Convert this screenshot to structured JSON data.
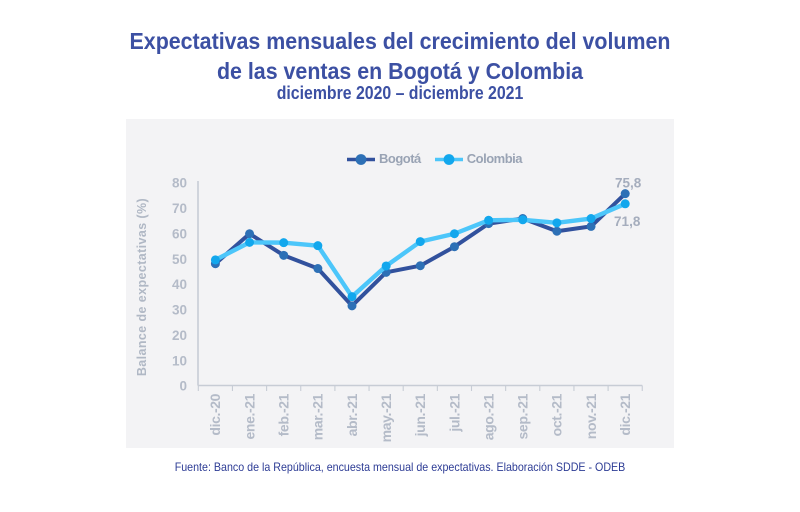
{
  "header": {
    "title_line1": "Expectativas mensuales del crecimiento del volumen",
    "title_line2": "de las ventas en Bogotá y Colombia",
    "subtitle": "diciembre 2020 – diciembre 2021"
  },
  "footer": {
    "source": "Fuente: Banco de la República, encuesta mensual de expectativas. Elaboración SDDE - ODEB"
  },
  "chart_data": {
    "type": "line",
    "title": "Expectativas mensuales del crecimiento del volumen de las ventas en Bogotá y Colombia",
    "subtitle": "diciembre 2020 – diciembre 2021",
    "categories": [
      "dic.-20",
      "ene.-21",
      "feb.-21",
      "mar.-21",
      "abr.-21",
      "may.-21",
      "jun.-21",
      "jul.-21",
      "ago.-21",
      "sep.-21",
      "oct.-21",
      "nov.-21",
      "dic.-21"
    ],
    "xlabel": "",
    "ylabel": "Balance de expectativas (%)",
    "ylim": [
      0,
      80
    ],
    "ytick_step": 10,
    "grid": false,
    "legend_position": "top",
    "series": [
      {
        "name": "Bogotá",
        "line_color": "#31519d",
        "marker_color": "#2d70b6",
        "line_width": 4,
        "values": [
          48.2,
          60.0,
          51.5,
          46.3,
          31.6,
          44.8,
          47.4,
          54.9,
          64.0,
          66.0,
          61.0,
          62.9,
          75.8
        ],
        "end_label": "75,8",
        "end_label_side": "above"
      },
      {
        "name": "Colombia",
        "line_color": "#4cc6fa",
        "marker_color": "#12a7ed",
        "line_width": 4.4,
        "values": [
          49.7,
          56.6,
          56.5,
          55.3,
          35.2,
          47.3,
          56.9,
          60.0,
          65.3,
          65.5,
          64.3,
          66.0,
          71.8
        ],
        "end_label": "71,8",
        "end_label_side": "below"
      }
    ],
    "colors": {
      "axis_line": "#c7ccd5",
      "tick_label": "#b4bbc8",
      "axis_title": "#b0b8c5",
      "end_label": "#a5adbd",
      "panel_background": "#f3f3f5",
      "title_text": "#3c50a3",
      "footer_text": "#2d3c95"
    }
  }
}
